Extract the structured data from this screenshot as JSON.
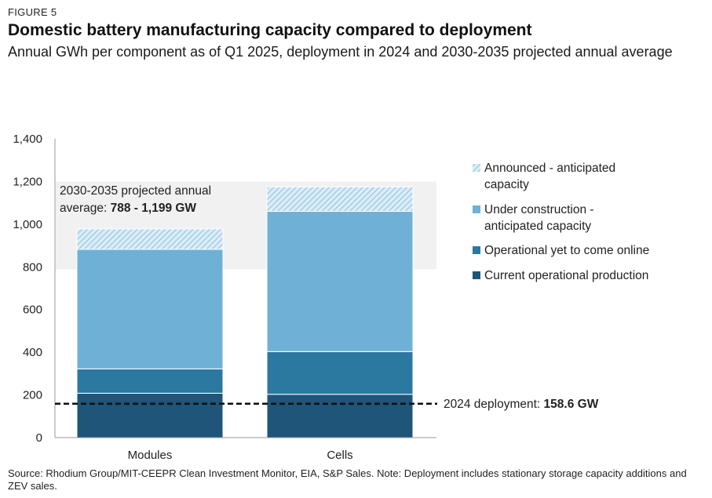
{
  "figure_label": "FIGURE 5",
  "title": "Domestic battery manufacturing capacity compared to deployment",
  "subtitle": "Annual GWh per component as of Q1 2025, deployment in 2024 and 2030-2035 projected annual average",
  "footnote": "Source: Rhodium Group/MIT-CEEPR Clean Investment Monitor, EIA, S&P Sales. Note: Deployment includes stationary storage capacity additions and ZEV sales.",
  "colors": {
    "current": "#1f5578",
    "operational_yet": "#2b78a1",
    "under_construction": "#6fb1d6",
    "announced": "#aad3ec",
    "projection_band": "#f1f1f1"
  },
  "chart_data": {
    "type": "bar",
    "stacked": true,
    "categories": [
      "Modules",
      "Cells"
    ],
    "series": [
      {
        "name": "Current operational production",
        "key": "current",
        "values": [
          208,
          203
        ]
      },
      {
        "name": "Operational yet to come online",
        "key": "operational_yet",
        "values": [
          114,
          200
        ]
      },
      {
        "name": "Under construction - anticipated capacity",
        "key": "under_construction",
        "values": [
          560,
          657
        ]
      },
      {
        "name": "Announced - anticipated capacity",
        "key": "announced",
        "values": [
          96,
          115
        ]
      }
    ],
    "ylim": [
      0,
      1400
    ],
    "yticks": [
      "0",
      "200",
      "400",
      "600",
      "800",
      "1,000",
      "1,200",
      "1,400"
    ],
    "grid": false,
    "legend_position": "right",
    "legend_order": [
      "announced",
      "under_construction",
      "operational_yet",
      "current"
    ],
    "projection_band": {
      "range": [
        788,
        1199
      ],
      "label_text": "2030-2035 projected annual average:",
      "label_value": "788 - 1,199 GW"
    },
    "deployment_line": {
      "value": 158.6,
      "label_text": "2024 deployment:",
      "label_value": "158.6 GW"
    }
  }
}
